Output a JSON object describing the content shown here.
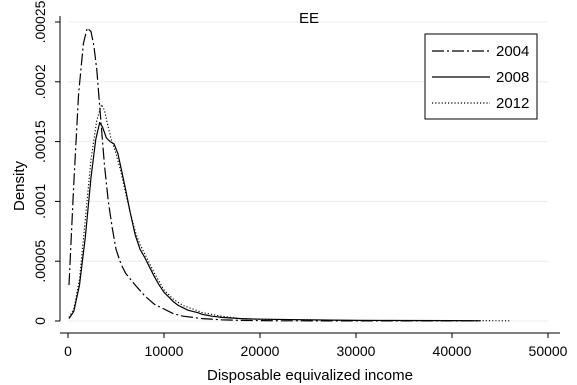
{
  "chart_data": {
    "type": "line",
    "title": "EE",
    "xlabel": "Disposable equivalized income",
    "ylabel": "Density",
    "xlim": [
      0,
      50000
    ],
    "ylim": [
      0,
      0.00025
    ],
    "xticks": [
      0,
      10000,
      20000,
      30000,
      40000,
      50000
    ],
    "xtick_labels": [
      "0",
      "10000",
      "20000",
      "30000",
      "40000",
      "50000"
    ],
    "yticks": [
      0,
      5e-05,
      0.0001,
      0.00015,
      0.0002,
      0.00025
    ],
    "ytick_labels": [
      "0",
      ".00005",
      ".0001",
      ".00015",
      ".0002",
      ".00025"
    ],
    "grid": "horizontal",
    "legend_position": "top-right",
    "series": [
      {
        "name": "2004",
        "line_style": "dash-dot",
        "x": [
          100,
          600,
          1100,
          1600,
          2000,
          2400,
          2700,
          3000,
          3400,
          3800,
          4200,
          4600,
          5000,
          5500,
          6000,
          7000,
          8000,
          9000,
          10000,
          11000,
          12000,
          13000,
          14000,
          16000,
          18000,
          22000,
          30000,
          40000,
          43000
        ],
        "y": [
          3e-05,
          0.000115,
          0.00019,
          0.000232,
          0.000245,
          0.000242,
          0.00023,
          0.00021,
          0.00017,
          0.00013,
          0.0001,
          7.8e-05,
          6e-05,
          4.8e-05,
          4e-05,
          3e-05,
          2.1e-05,
          1.4e-05,
          1e-05,
          6e-06,
          4e-06,
          3e-06,
          2e-06,
          1e-06,
          5e-07,
          2e-07,
          1e-07,
          5e-08,
          5e-08
        ]
      },
      {
        "name": "2008",
        "line_style": "solid",
        "x": [
          100,
          600,
          1200,
          1800,
          2400,
          2900,
          3300,
          3600,
          4000,
          4400,
          4800,
          5200,
          5600,
          6000,
          6500,
          7000,
          7500,
          8000,
          8500,
          9000,
          9500,
          10000,
          10500,
          11000,
          11500,
          12000,
          12500,
          13000,
          13500,
          14000,
          15000,
          16000,
          18000,
          20000,
          25000,
          30000,
          35000,
          40000,
          43000
        ],
        "y": [
          2e-06,
          8e-06,
          3e-05,
          7e-05,
          0.00012,
          0.000152,
          0.000166,
          0.000162,
          0.000153,
          0.00015,
          0.000148,
          0.00014,
          0.000125,
          0.00011,
          9e-05,
          7.2e-05,
          6e-05,
          5.3e-05,
          4.5e-05,
          3.7e-05,
          3e-05,
          2.4e-05,
          2e-05,
          1.6e-05,
          1.3e-05,
          1.1e-05,
          9e-06,
          8e-06,
          7e-06,
          5.5e-06,
          4e-06,
          3e-06,
          2e-06,
          1.5e-06,
          1e-06,
          5e-07,
          4e-07,
          3e-07,
          2e-07
        ]
      },
      {
        "name": "2012",
        "line_style": "dotted",
        "x": [
          100,
          600,
          1200,
          1800,
          2400,
          3000,
          3500,
          3800,
          4100,
          4500,
          5000,
          5500,
          6000,
          6500,
          7000,
          7500,
          8000,
          8500,
          9000,
          9500,
          10000,
          11000,
          12000,
          13000,
          14000,
          16000,
          18000,
          20000,
          25000,
          30000,
          35000,
          40000,
          46000
        ],
        "y": [
          3e-06,
          1e-05,
          3.5e-05,
          8.5e-05,
          0.000135,
          0.000168,
          0.000181,
          0.000176,
          0.000165,
          0.000152,
          0.00014,
          0.000125,
          0.000107,
          9e-05,
          7.5e-05,
          6.4e-05,
          5.6e-05,
          4.8e-05,
          4e-05,
          3.3e-05,
          2.6e-05,
          1.8e-05,
          1.3e-05,
          1e-05,
          7e-06,
          4e-06,
          2e-06,
          1.5e-06,
          1e-06,
          5e-07,
          4e-07,
          3e-07,
          2e-07
        ]
      }
    ]
  }
}
